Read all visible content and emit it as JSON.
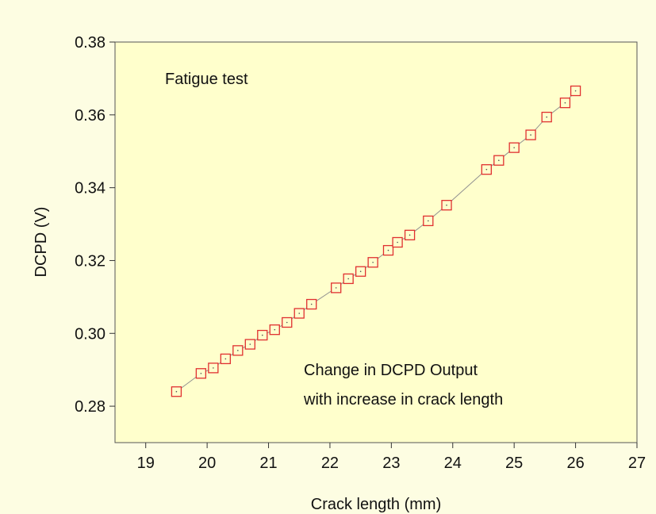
{
  "chart_data": {
    "type": "line",
    "xlabel": "Crack length (mm)",
    "ylabel": "DCPD (V)",
    "annotations": [
      "Fatigue test",
      "Change in DCPD Output",
      "with increase in crack length"
    ],
    "x": [
      19.5,
      19.9,
      20.1,
      20.3,
      20.5,
      20.7,
      20.9,
      21.1,
      21.3,
      21.5,
      21.7,
      22.1,
      22.3,
      22.5,
      22.7,
      22.95,
      23.1,
      23.3,
      23.6,
      23.9,
      24.55,
      24.75,
      25.0,
      25.27,
      25.53,
      25.83,
      26.0
    ],
    "series": [
      {
        "name": "DCPD",
        "color": "#e03030",
        "line_color": "#909090",
        "values": [
          0.284,
          0.289,
          0.2905,
          0.293,
          0.2953,
          0.297,
          0.2995,
          0.301,
          0.303,
          0.3055,
          0.308,
          0.3125,
          0.315,
          0.317,
          0.3195,
          0.3228,
          0.325,
          0.327,
          0.3309,
          0.3352,
          0.345,
          0.3475,
          0.351,
          0.3545,
          0.3594,
          0.3633,
          0.3666
        ]
      }
    ],
    "xlim": [
      18.5,
      27
    ],
    "xticks": [
      19,
      20,
      21,
      22,
      23,
      24,
      25,
      26,
      27
    ],
    "ylim": [
      0.27,
      0.38
    ],
    "yticks": [
      {
        "value": 0.28,
        "label": "0.28"
      },
      {
        "value": 0.3,
        "label": "0.30"
      },
      {
        "value": 0.32,
        "label": "0.32"
      },
      {
        "value": 0.34,
        "label": "0.34"
      },
      {
        "value": 0.36,
        "label": "0.36"
      },
      {
        "value": 0.38,
        "label": "0.38"
      }
    ]
  }
}
